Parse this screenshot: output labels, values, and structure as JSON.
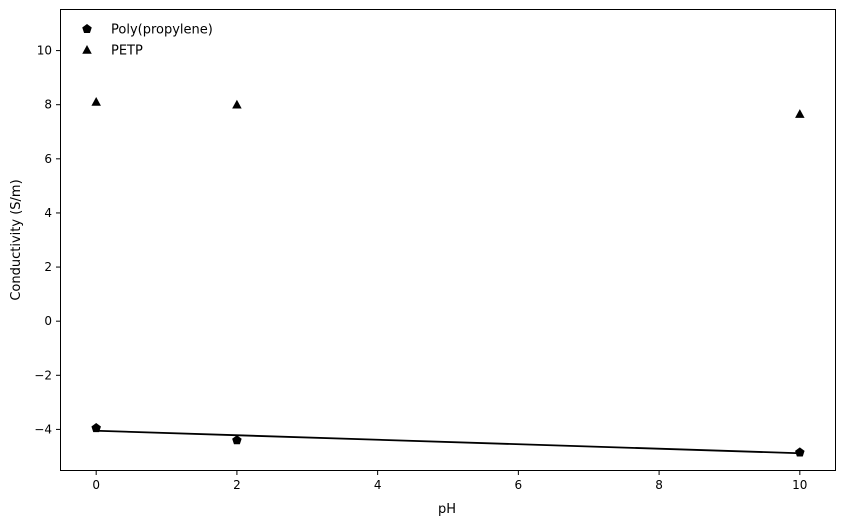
{
  "chart_data": {
    "type": "scatter",
    "xlabel": "pH",
    "ylabel": "Conductivity (S/m)",
    "xlim": [
      -0.5,
      10.5
    ],
    "ylim": [
      -5.5,
      11.5
    ],
    "xticks": [
      0,
      2,
      4,
      6,
      8,
      10
    ],
    "xtick_labels": [
      "0",
      "2",
      "4",
      "6",
      "8",
      "10"
    ],
    "yticks": [
      -4,
      -2,
      0,
      2,
      4,
      6,
      8,
      10
    ],
    "ytick_labels": [
      "−4",
      "−2",
      "0",
      "2",
      "4",
      "6",
      "8",
      "10"
    ],
    "grid": false,
    "legend_position": "top-left",
    "series": [
      {
        "name": "Poly(propylene)",
        "marker": "pentagon",
        "color": "#000000",
        "x": [
          0,
          2,
          10
        ],
        "y": [
          -3.95,
          -4.4,
          -4.85
        ]
      },
      {
        "name": "PETP",
        "marker": "triangle",
        "color": "#000000",
        "x": [
          0,
          2,
          10
        ],
        "y": [
          8.1,
          8.0,
          7.65
        ]
      }
    ],
    "lines": [
      {
        "series": "Poly(propylene)",
        "color": "#000000",
        "x": [
          0,
          10
        ],
        "y": [
          -4.05,
          -4.88
        ]
      }
    ]
  }
}
